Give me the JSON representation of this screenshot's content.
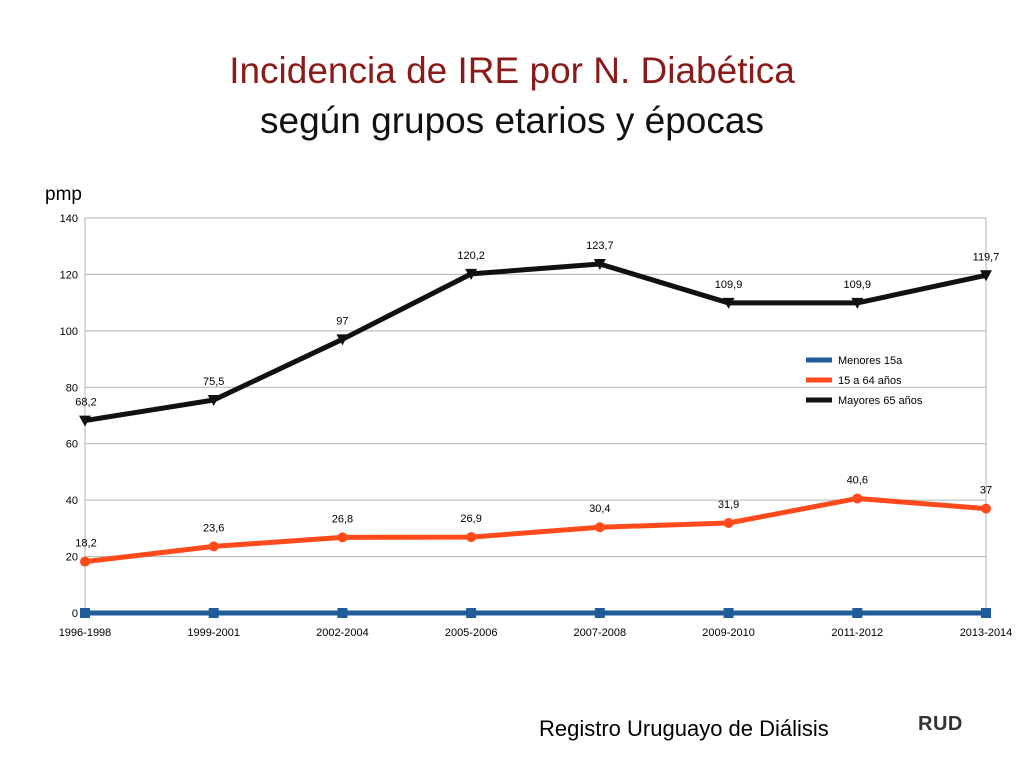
{
  "title": "Incidencia de IRE por N. Diabética",
  "subtitle": "según grupos etarios y épocas",
  "source": "Registro Uruguayo de Diálisis",
  "logo_text": "RUD",
  "chart_data": {
    "type": "line",
    "ylabel": "pmp",
    "ylim": [
      0,
      140
    ],
    "yticks": [
      0,
      20,
      40,
      60,
      80,
      100,
      120,
      140
    ],
    "grid": true,
    "legend_position": "right, inside plot",
    "categories": [
      "1996-1998",
      "1999-2001",
      "2002-2004",
      "2005-2006",
      "2007-2008",
      "2009-2010",
      "2011-2012",
      "2013-2014"
    ],
    "series": [
      {
        "name": "Menores 15a",
        "color": "#1f5c99",
        "marker": "square",
        "values": [
          0,
          0,
          0,
          0,
          0,
          0,
          0,
          0
        ],
        "labels": null
      },
      {
        "name": "15 a 64 años",
        "color": "#ff4a1c",
        "marker": "circle",
        "values": [
          18.2,
          23.6,
          26.8,
          26.9,
          30.4,
          31.9,
          40.6,
          37
        ],
        "labels": [
          "18,2",
          "23,6",
          "26,8",
          "26,9",
          "30,4",
          "31,9",
          "40,6",
          "37"
        ]
      },
      {
        "name": "Mayores 65 años",
        "color": "#111111",
        "marker": "triangle-down",
        "values": [
          68.2,
          75.5,
          97,
          120.2,
          123.7,
          109.9,
          109.9,
          119.7
        ],
        "labels": [
          "68,2",
          "75,5",
          "97",
          "120,2",
          "123,7",
          "109,9",
          "109,9",
          "119,7"
        ]
      }
    ]
  }
}
